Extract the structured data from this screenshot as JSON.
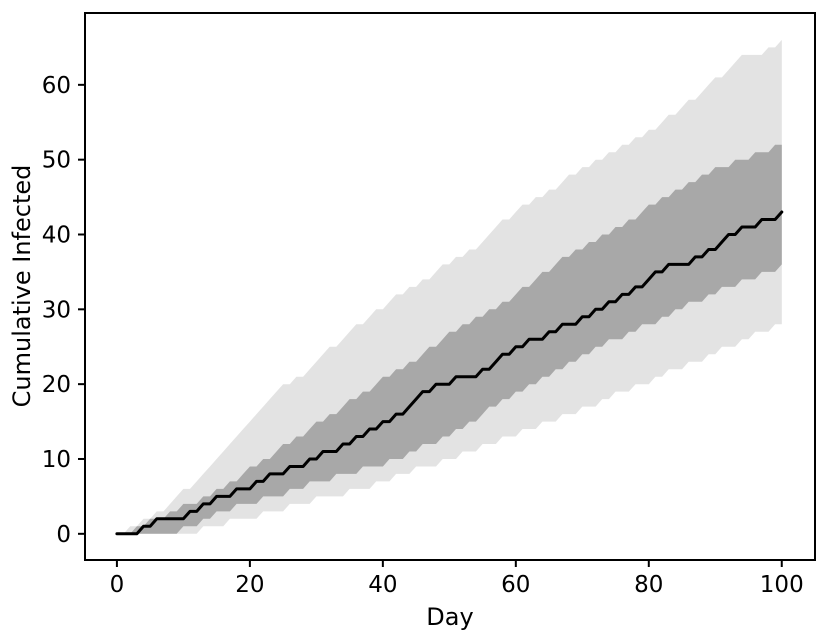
{
  "figure": {
    "background": "#ffffff",
    "axis_color": "#000000"
  },
  "chart_data": {
    "type": "area",
    "title": "",
    "xlabel": "Day",
    "ylabel": "Cumulative Infected",
    "grid": false,
    "legend": null,
    "xlim": [
      -4.8,
      105.0
    ],
    "ylim": [
      -3.5,
      69.6
    ],
    "x_ticks": [
      0,
      20,
      40,
      60,
      80,
      100
    ],
    "y_ticks": [
      0,
      10,
      20,
      30,
      40,
      50,
      60
    ],
    "colors": {
      "median_line": "#000000",
      "inner_band": "#a8a8a8",
      "outer_band": "#e3e3e3"
    },
    "days": [
      0,
      1,
      2,
      3,
      4,
      5,
      6,
      7,
      8,
      9,
      10,
      11,
      12,
      13,
      14,
      15,
      16,
      17,
      18,
      19,
      20,
      21,
      22,
      23,
      24,
      25,
      26,
      27,
      28,
      29,
      30,
      31,
      32,
      33,
      34,
      35,
      36,
      37,
      38,
      39,
      40,
      41,
      42,
      43,
      44,
      45,
      46,
      47,
      48,
      49,
      50,
      51,
      52,
      53,
      54,
      55,
      56,
      57,
      58,
      59,
      60,
      61,
      62,
      63,
      64,
      65,
      66,
      67,
      68,
      69,
      70,
      71,
      72,
      73,
      74,
      75,
      76,
      77,
      78,
      79,
      80,
      81,
      82,
      83,
      84,
      85,
      86,
      87,
      88,
      89,
      90,
      91,
      92,
      93,
      94,
      95,
      96,
      97,
      98,
      99,
      100
    ],
    "series": [
      {
        "name": "outer-band",
        "kind": "band",
        "color": "#e3e3e3",
        "low": [
          0,
          0,
          0,
          0,
          0,
          0,
          0,
          0,
          0,
          0,
          0,
          0,
          0,
          1,
          1,
          1,
          1,
          2,
          2,
          2,
          2,
          2,
          3,
          3,
          3,
          3,
          4,
          4,
          4,
          4,
          5,
          5,
          5,
          5,
          5,
          6,
          6,
          6,
          6,
          7,
          7,
          7,
          8,
          8,
          8,
          9,
          9,
          9,
          9,
          10,
          10,
          10,
          11,
          11,
          11,
          12,
          12,
          12,
          13,
          13,
          13,
          14,
          14,
          14,
          15,
          15,
          15,
          16,
          16,
          16,
          17,
          17,
          17,
          18,
          18,
          19,
          19,
          19,
          20,
          20,
          20,
          21,
          21,
          22,
          22,
          22,
          23,
          23,
          23,
          24,
          24,
          25,
          25,
          25,
          26,
          26,
          27,
          27,
          27,
          28,
          28
        ],
        "high": [
          0,
          0,
          1,
          1,
          2,
          2,
          3,
          3,
          4,
          5,
          6,
          6,
          7,
          8,
          9,
          10,
          11,
          12,
          13,
          14,
          15,
          16,
          17,
          18,
          19,
          20,
          20,
          21,
          21,
          22,
          23,
          24,
          25,
          25,
          26,
          27,
          28,
          28,
          29,
          30,
          30,
          31,
          32,
          32,
          33,
          33,
          34,
          34,
          35,
          36,
          36,
          37,
          37,
          38,
          38,
          39,
          40,
          41,
          42,
          42,
          43,
          44,
          44,
          45,
          45,
          46,
          46,
          47,
          48,
          48,
          49,
          49,
          50,
          50,
          51,
          51,
          52,
          52,
          53,
          53,
          54,
          54,
          55,
          56,
          56,
          57,
          58,
          58,
          59,
          60,
          61,
          61,
          62,
          63,
          64,
          64,
          64,
          64,
          65,
          65,
          66
        ]
      },
      {
        "name": "inner-band",
        "kind": "band",
        "color": "#a8a8a8",
        "low": [
          0,
          0,
          0,
          0,
          0,
          0,
          0,
          0,
          0,
          0,
          1,
          1,
          1,
          2,
          2,
          3,
          3,
          3,
          4,
          4,
          4,
          4,
          5,
          5,
          5,
          5,
          6,
          6,
          6,
          7,
          7,
          7,
          7,
          8,
          8,
          8,
          8,
          9,
          9,
          9,
          9,
          10,
          10,
          10,
          11,
          11,
          12,
          12,
          12,
          13,
          13,
          14,
          14,
          15,
          15,
          16,
          17,
          17,
          18,
          18,
          19,
          19,
          20,
          20,
          21,
          21,
          22,
          22,
          23,
          23,
          24,
          24,
          25,
          25,
          26,
          26,
          26,
          27,
          27,
          28,
          28,
          28,
          29,
          29,
          30,
          30,
          31,
          31,
          31,
          32,
          32,
          33,
          33,
          33,
          34,
          34,
          34,
          35,
          35,
          35,
          36
        ],
        "high": [
          0,
          0,
          0,
          1,
          1,
          2,
          2,
          2,
          3,
          3,
          4,
          4,
          4,
          5,
          5,
          6,
          6,
          7,
          7,
          8,
          9,
          9,
          10,
          10,
          11,
          12,
          12,
          13,
          13,
          14,
          15,
          15,
          16,
          16,
          17,
          18,
          18,
          19,
          19,
          20,
          21,
          21,
          22,
          22,
          23,
          23,
          24,
          25,
          25,
          26,
          27,
          27,
          28,
          28,
          29,
          29,
          30,
          30,
          31,
          31,
          32,
          33,
          33,
          34,
          35,
          35,
          36,
          37,
          37,
          38,
          38,
          39,
          39,
          40,
          40,
          41,
          41,
          42,
          42,
          43,
          44,
          44,
          45,
          45,
          46,
          46,
          47,
          47,
          48,
          48,
          49,
          49,
          49,
          50,
          50,
          50,
          51,
          51,
          51,
          52,
          52
        ]
      },
      {
        "name": "median",
        "kind": "line",
        "color": "#000000",
        "values": [
          0,
          0,
          0,
          0,
          1,
          1,
          2,
          2,
          2,
          2,
          2,
          3,
          3,
          4,
          4,
          5,
          5,
          5,
          6,
          6,
          6,
          7,
          7,
          8,
          8,
          8,
          9,
          9,
          9,
          10,
          10,
          11,
          11,
          11,
          12,
          12,
          13,
          13,
          14,
          14,
          15,
          15,
          16,
          16,
          17,
          18,
          19,
          19,
          20,
          20,
          20,
          21,
          21,
          21,
          21,
          22,
          22,
          23,
          24,
          24,
          25,
          25,
          26,
          26,
          26,
          27,
          27,
          28,
          28,
          28,
          29,
          29,
          30,
          30,
          31,
          31,
          32,
          32,
          33,
          33,
          34,
          35,
          35,
          36,
          36,
          36,
          36,
          37,
          37,
          38,
          38,
          39,
          40,
          40,
          41,
          41,
          41,
          42,
          42,
          42,
          43
        ]
      }
    ]
  }
}
